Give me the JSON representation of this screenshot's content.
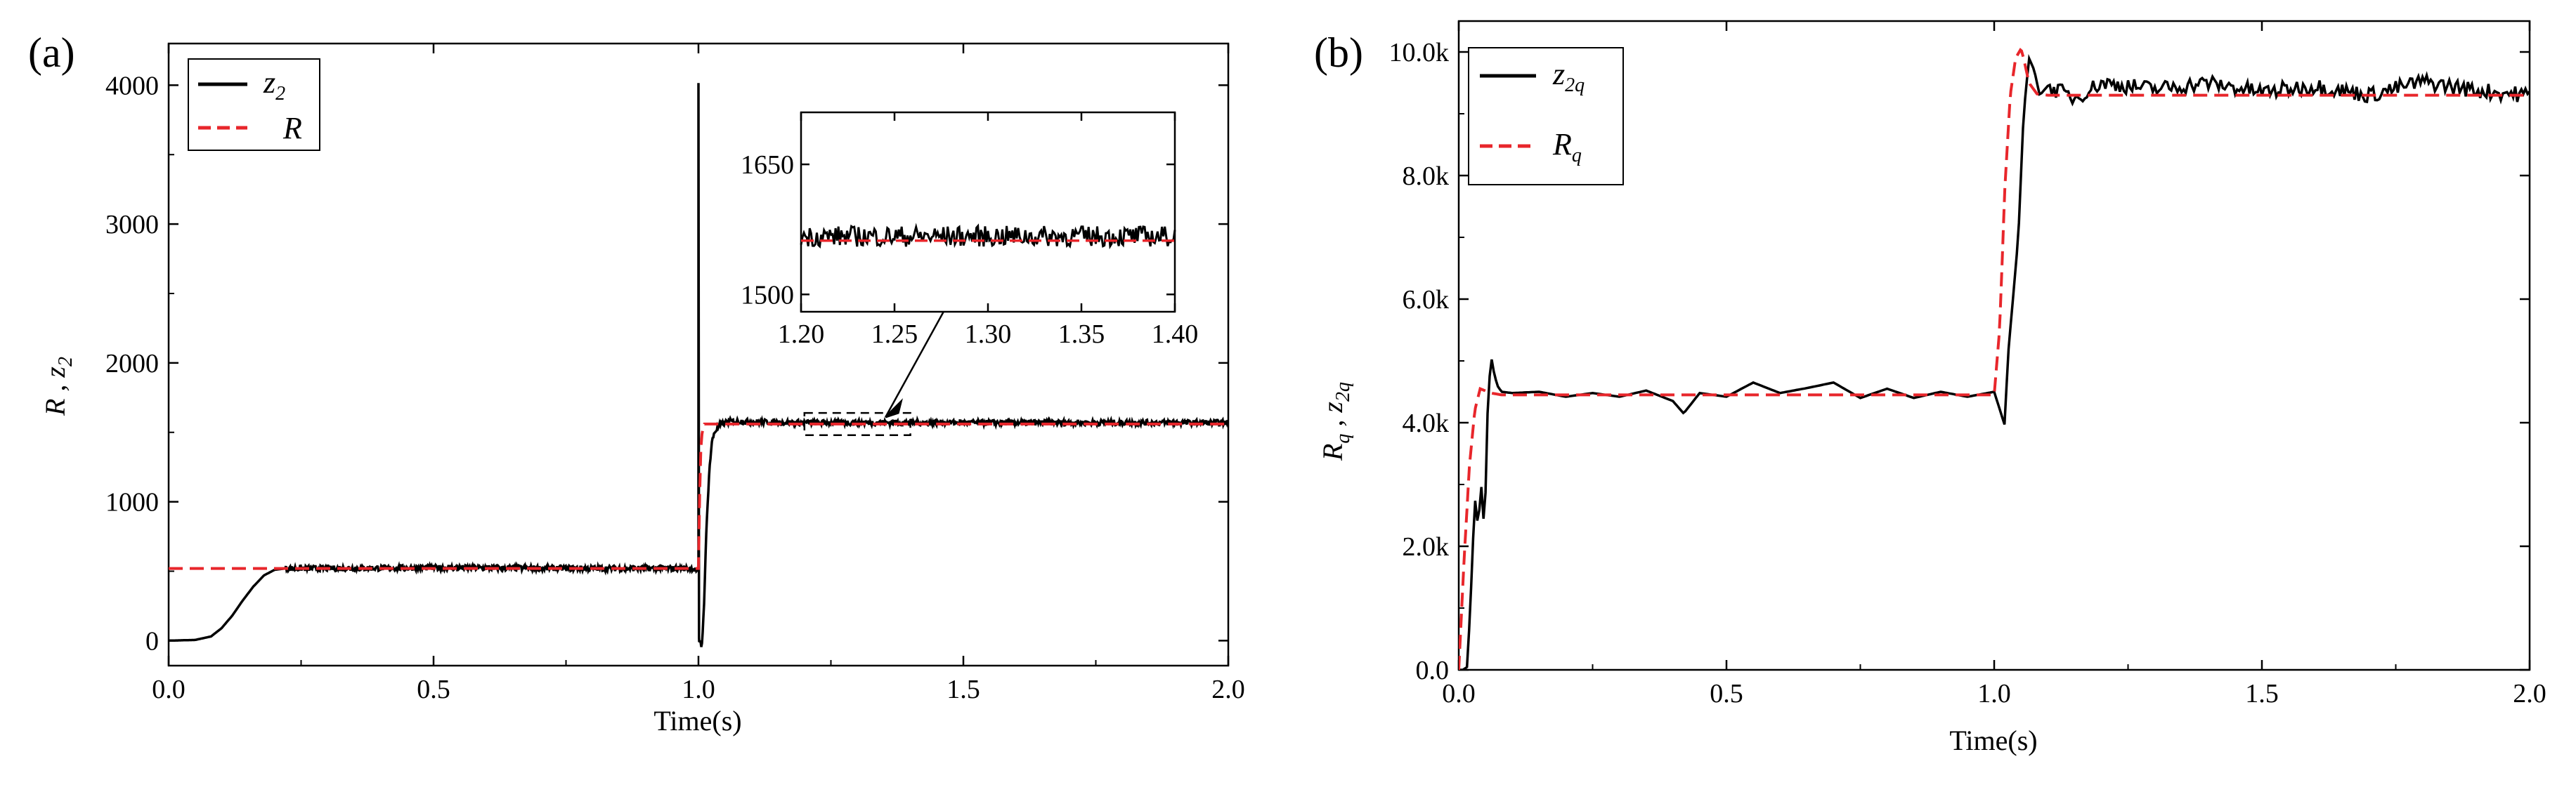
{
  "chart_data": [
    {
      "panel_label": "(a)",
      "type": "line",
      "xlabel": "Time(s)",
      "ylabel": {
        "main": "R , z",
        "sub": "2"
      },
      "xlim": [
        0,
        2.0
      ],
      "ylim": [
        -180,
        4300
      ],
      "xticks": [
        0.0,
        0.5,
        1.0,
        1.5,
        2.0
      ],
      "xtick_labels": [
        "0.0",
        "0.5",
        "1.0",
        "1.5",
        "2.0"
      ],
      "yticks": [
        0,
        1000,
        2000,
        3000,
        4000
      ],
      "ytick_labels": [
        "0",
        "1000",
        "2000",
        "3000",
        "4000"
      ],
      "legend": [
        {
          "name": "z",
          "sub": "2",
          "style": "solid",
          "color": "#000000"
        },
        {
          "name": "R",
          "sub": "",
          "style": "dashed",
          "color": "#e8262b"
        }
      ],
      "series": [
        {
          "name": "z2",
          "color": "#000000",
          "x": [
            0,
            0.05,
            0.08,
            0.1,
            0.12,
            0.14,
            0.16,
            0.18,
            0.2,
            0.22,
            0.25,
            0.3,
            0.5,
            0.8,
            0.99,
            0.999,
            1.0,
            1.0,
            1.002,
            1.004,
            1.006,
            1.01,
            1.015,
            1.02,
            1.025,
            1.03,
            1.04,
            1.05,
            1.06,
            1.08,
            1.1,
            1.2,
            1.5,
            1.8,
            2.0
          ],
          "y": [
            0,
            5,
            30,
            90,
            180,
            290,
            390,
            470,
            510,
            520,
            520,
            520,
            525,
            520,
            520,
            500,
            4000,
            20,
            -30,
            0,
            -60,
            200,
            800,
            1200,
            1420,
            1500,
            1550,
            1570,
            1580,
            1580,
            1575,
            1570,
            1570,
            1570,
            1570
          ]
        },
        {
          "name": "R",
          "color": "#e8262b",
          "x": [
            0,
            0.999,
            1.0,
            1.001,
            1.003,
            1.005,
            1.01,
            2.0
          ],
          "y": [
            520,
            520,
            520,
            800,
            1200,
            1450,
            1560,
            1560
          ]
        }
      ],
      "inset": {
        "xlim": [
          1.2,
          1.4
        ],
        "ylim": [
          1480,
          1710
        ],
        "xticks": [
          1.2,
          1.25,
          1.3,
          1.35,
          1.4
        ],
        "xtick_labels": [
          "1.20",
          "1.25",
          "1.30",
          "1.35",
          "1.40"
        ],
        "yticks": [
          1500,
          1650
        ],
        "ytick_labels": [
          "1500",
          "1650"
        ],
        "reference_value": 1562,
        "signal_mean": 1567,
        "signal_noise": 12
      },
      "annotation": {
        "type": "zoom-box-arrow",
        "x_range": [
          1.2,
          1.4
        ],
        "y_range": [
          1480,
          1640
        ]
      }
    },
    {
      "panel_label": "(b)",
      "type": "line",
      "xlabel": "Time(s)",
      "ylabel": {
        "parts": [
          {
            "main": "R",
            "sub": "q"
          },
          {
            "main": " , z",
            "sub": "2q"
          }
        ]
      },
      "xlim": [
        0,
        2.0
      ],
      "ylim": [
        0,
        10500
      ],
      "xticks": [
        0.0,
        0.5,
        1.0,
        1.5,
        2.0
      ],
      "xtick_labels": [
        "0.0",
        "0.5",
        "1.0",
        "1.5",
        "2.0"
      ],
      "yticks": [
        0,
        2000,
        4000,
        6000,
        8000,
        10000
      ],
      "ytick_labels": [
        "0.0",
        "2.0k",
        "4.0k",
        "6.0k",
        "8.0k",
        "10.0k"
      ],
      "legend": [
        {
          "name": "z",
          "sub": "2q",
          "style": "solid",
          "color": "#000000"
        },
        {
          "name": "R",
          "sub": "q",
          "style": "dashed",
          "color": "#e8262b"
        }
      ],
      "series": [
        {
          "name": "z2q",
          "color": "#000000",
          "x": [
            0,
            0.008,
            0.016,
            0.024,
            0.03,
            0.036,
            0.042,
            0.048,
            0.054,
            0.06,
            0.066,
            0.072,
            0.08,
            0.1,
            0.15,
            0.2,
            0.25,
            0.3,
            0.35,
            0.4,
            0.42,
            0.45,
            0.5,
            0.55,
            0.6,
            0.65,
            0.7,
            0.75,
            0.8,
            0.85,
            0.9,
            0.95,
            1.0,
            1.02,
            1.025,
            1.035,
            1.045,
            1.055,
            1.065,
            1.075,
            1.085,
            1.1,
            1.15,
            1.2,
            1.3,
            1.4,
            1.5,
            1.6,
            1.7,
            1.8,
            1.9,
            2.0
          ],
          "y": [
            0,
            0,
            50,
            1500,
            2800,
            2300,
            3000,
            2200,
            4200,
            5100,
            4800,
            4600,
            4500,
            4480,
            4500,
            4420,
            4480,
            4420,
            4520,
            4350,
            4150,
            4480,
            4420,
            4650,
            4480,
            4560,
            4650,
            4400,
            4550,
            4400,
            4500,
            4420,
            4500,
            3950,
            5000,
            6000,
            7000,
            9000,
            9900,
            9700,
            9300,
            9450,
            9250,
            9500,
            9400,
            9500,
            9350,
            9450,
            9300,
            9520,
            9380,
            9300
          ]
        },
        {
          "name": "Rq",
          "color": "#e8262b",
          "x": [
            0,
            0.01,
            0.02,
            0.03,
            0.04,
            0.06,
            0.08,
            1.0,
            1.01,
            1.02,
            1.03,
            1.04,
            1.05,
            1.055,
            1.065,
            1.08,
            1.1,
            2.0
          ],
          "y": [
            0,
            1800,
            3300,
            4200,
            4550,
            4480,
            4450,
            4450,
            5500,
            7800,
            9300,
            9900,
            10050,
            9900,
            9500,
            9320,
            9300,
            9300
          ]
        }
      ]
    }
  ]
}
